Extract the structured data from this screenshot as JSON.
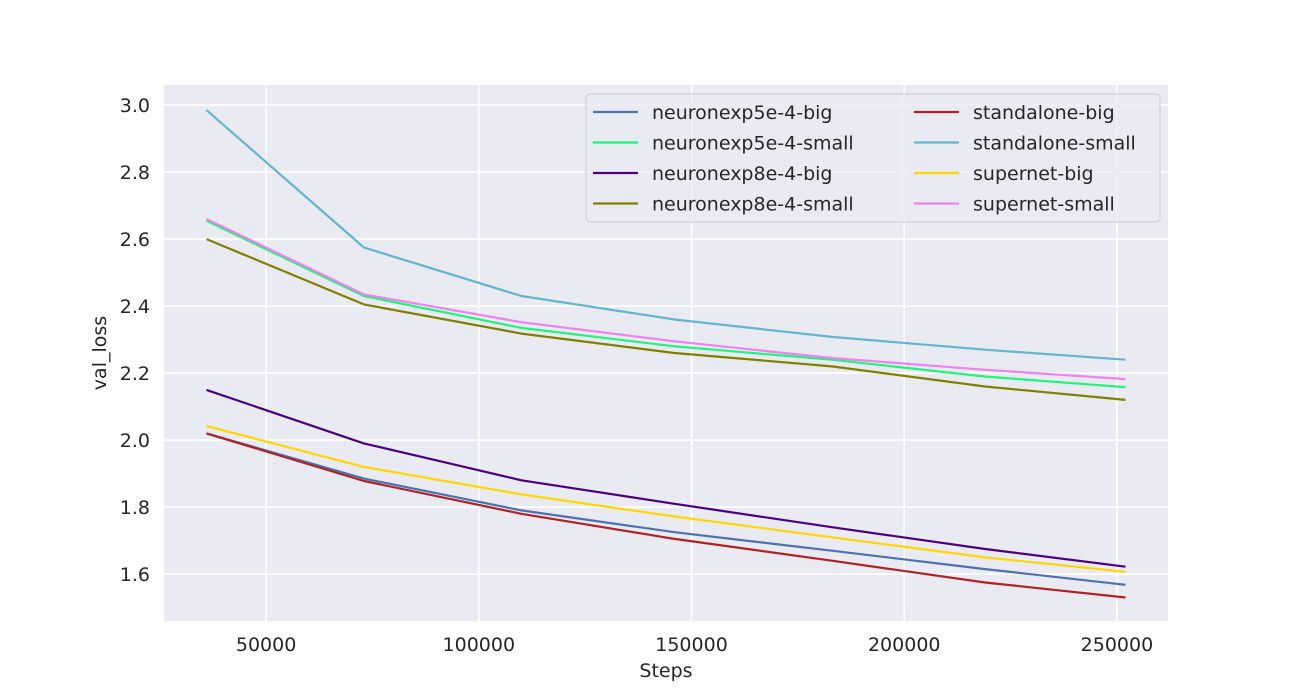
{
  "chart_data": {
    "type": "line",
    "title": "",
    "xlabel": "Steps",
    "ylabel": "val_loss",
    "xlim": [
      26000,
      262000
    ],
    "ylim": [
      1.46,
      3.06
    ],
    "xticks": [
      50000,
      100000,
      150000,
      200000,
      250000
    ],
    "yticks": [
      1.6,
      1.8,
      2.0,
      2.2,
      2.4,
      2.6,
      2.8,
      3.0
    ],
    "xtick_labels": [
      "50000",
      "100000",
      "150000",
      "200000",
      "250000"
    ],
    "ytick_labels": [
      "1.6",
      "1.8",
      "2.0",
      "2.2",
      "2.4",
      "2.6",
      "2.8",
      "3.0"
    ],
    "grid": true,
    "legend_position": "top-right",
    "legend_columns": 2,
    "x": [
      36000,
      73000,
      110000,
      146000,
      183000,
      219000,
      252000
    ],
    "series": [
      {
        "name": "neuronexp5e-4-big",
        "color": "#4c72b0",
        "values": [
          2.02,
          1.885,
          1.79,
          1.725,
          1.67,
          1.615,
          1.568
        ]
      },
      {
        "name": "neuronexp5e-4-small",
        "color": "#1ef57a",
        "values": [
          2.655,
          2.43,
          2.335,
          2.28,
          2.24,
          2.19,
          2.158
        ]
      },
      {
        "name": "neuronexp8e-4-big",
        "color": "#4b0082",
        "values": [
          2.15,
          1.99,
          1.88,
          1.81,
          1.74,
          1.675,
          1.622
        ]
      },
      {
        "name": "neuronexp8e-4-small",
        "color": "#808000",
        "values": [
          2.6,
          2.405,
          2.318,
          2.26,
          2.22,
          2.16,
          2.12
        ]
      },
      {
        "name": "standalone-big",
        "color": "#b22222",
        "values": [
          2.02,
          1.878,
          1.78,
          1.705,
          1.64,
          1.575,
          1.53
        ]
      },
      {
        "name": "standalone-small",
        "color": "#63b5cf",
        "values": [
          2.985,
          2.575,
          2.43,
          2.36,
          2.308,
          2.27,
          2.24
        ]
      },
      {
        "name": "supernet-big",
        "color": "#ffd700",
        "values": [
          2.042,
          1.92,
          1.838,
          1.772,
          1.71,
          1.65,
          1.607
        ]
      },
      {
        "name": "supernet-small",
        "color": "#ee82ee",
        "values": [
          2.66,
          2.435,
          2.352,
          2.295,
          2.245,
          2.21,
          2.182
        ]
      }
    ]
  },
  "style": {
    "plot_background": "#eaeaf2",
    "grid_color": "#ffffff",
    "text_color": "#262626"
  }
}
